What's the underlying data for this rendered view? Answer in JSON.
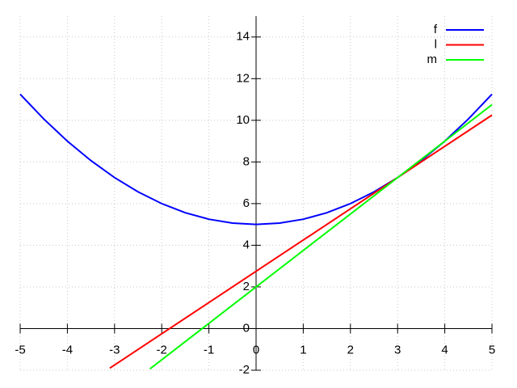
{
  "chart_data": {
    "type": "line",
    "xlim": [
      -5,
      5
    ],
    "ylim": [
      -2,
      15
    ],
    "xticks": [
      -5,
      -4,
      -3,
      -2,
      -1,
      0,
      1,
      2,
      3,
      4,
      5
    ],
    "yticks": [
      -2,
      0,
      2,
      4,
      6,
      8,
      10,
      12,
      14
    ],
    "grid": true,
    "legend": "top right",
    "series": [
      {
        "name": "f",
        "color": "#0000ff",
        "x": [
          -5,
          -4.5,
          -4,
          -3.5,
          -3,
          -2.5,
          -2,
          -1.5,
          -1,
          -0.5,
          0,
          0.5,
          1,
          1.5,
          2,
          2.5,
          3,
          3.5,
          4,
          4.5,
          5
        ],
        "values": [
          11.25,
          10.0625,
          9,
          8.0625,
          7.25,
          6.5625,
          6,
          5.5625,
          5.25,
          5.0625,
          5,
          5.0625,
          5.25,
          5.5625,
          6,
          6.5625,
          7.25,
          8.0625,
          9,
          10.0625,
          11.25
        ]
      },
      {
        "name": "l",
        "color": "#ff0000",
        "x": [
          -3.1,
          5
        ],
        "values": [
          -1.9,
          10.25
        ]
      },
      {
        "name": "m",
        "color": "#00ff00",
        "x": [
          -2.25,
          5
        ],
        "values": [
          -1.9375,
          10.75
        ]
      }
    ]
  }
}
